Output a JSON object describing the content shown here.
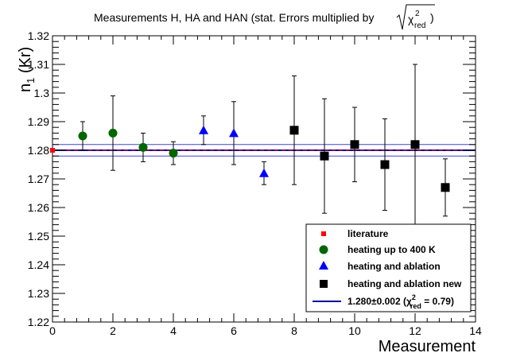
{
  "chart_data": {
    "type": "scatter",
    "title": "Measurements H, HA and HAN (stat. Errors multiplied by",
    "title_radical": {
      "symbol": "χ",
      "superscript": "2",
      "subscript": "red",
      "closing": ")"
    },
    "xlabel": "Measurement",
    "ylabel": "n",
    "ylabel_subscript": "1",
    "ylabel_suffix": " (Kr)",
    "xlim": [
      0,
      14
    ],
    "ylim": [
      1.22,
      1.32
    ],
    "x_ticks": [
      0,
      2,
      4,
      6,
      8,
      10,
      12,
      14
    ],
    "y_ticks": [
      1.22,
      1.23,
      1.24,
      1.25,
      1.26,
      1.27,
      1.28,
      1.29,
      1.3,
      1.31,
      1.32
    ],
    "x_tick_labels": [
      "0",
      "2",
      "4",
      "6",
      "8",
      "10",
      "12",
      "14"
    ],
    "y_tick_labels": [
      "1.22",
      "1.23",
      "1.24",
      "1.25",
      "1.26",
      "1.27",
      "1.28",
      "1.29",
      "1.3",
      "1.31",
      "1.32"
    ],
    "legend_position": "bottom-right",
    "series": [
      {
        "name": "literature",
        "marker": "small-square",
        "color": "#ff0000",
        "points": [
          {
            "x": 0,
            "y": 1.28,
            "err": 0
          }
        ]
      },
      {
        "name": "heating up to 400 K",
        "marker": "circle",
        "color": "#006600",
        "points": [
          {
            "x": 1,
            "y": 1.285,
            "err": 0.005
          },
          {
            "x": 2,
            "y": 1.286,
            "err": 0.013
          },
          {
            "x": 3,
            "y": 1.281,
            "err": 0.005
          },
          {
            "x": 4,
            "y": 1.279,
            "err": 0.004
          }
        ]
      },
      {
        "name": "heating and ablation",
        "marker": "triangle",
        "color": "#0000ff",
        "points": [
          {
            "x": 5,
            "y": 1.287,
            "err": 0.005
          },
          {
            "x": 6,
            "y": 1.286,
            "err": 0.011
          },
          {
            "x": 7,
            "y": 1.272,
            "err": 0.004
          }
        ]
      },
      {
        "name": "heating and ablation new",
        "marker": "square",
        "color": "#000000",
        "points": [
          {
            "x": 8,
            "y": 1.287,
            "err": 0.019
          },
          {
            "x": 9,
            "y": 1.278,
            "err": 0.02
          },
          {
            "x": 10,
            "y": 1.282,
            "err": 0.013
          },
          {
            "x": 11,
            "y": 1.275,
            "err": 0.016
          },
          {
            "x": 12,
            "y": 1.282,
            "err": 0.028
          },
          {
            "x": 13,
            "y": 1.267,
            "err": 0.01
          }
        ]
      }
    ],
    "fit": {
      "label_prefix": "1.280±0.002 (",
      "label_symbol": "χ",
      "label_superscript": "2",
      "label_subscript": "red",
      "label_suffix": " = 0.79)",
      "value": 1.28,
      "error": 0.002,
      "color": "#00009a",
      "band_color": "#4444cc",
      "literature_line_color": "#ff0000"
    }
  }
}
